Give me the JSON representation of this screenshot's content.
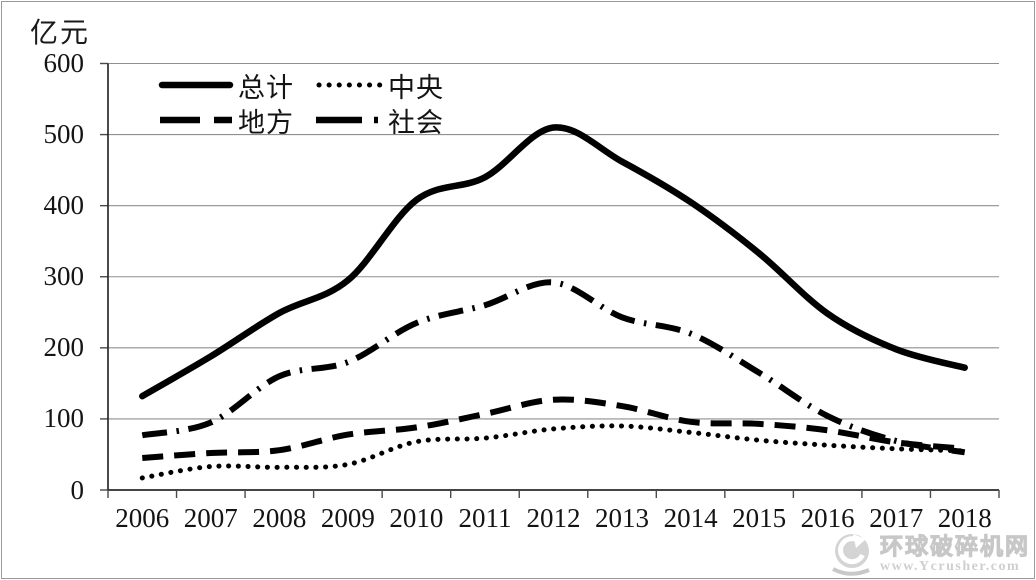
{
  "chart_data": {
    "type": "line",
    "title": "",
    "ylabel": "亿元",
    "xlabel": "",
    "categories": [
      "2006",
      "2007",
      "2008",
      "2009",
      "2010",
      "2011",
      "2012",
      "2013",
      "2014",
      "2015",
      "2016",
      "2017",
      "2018"
    ],
    "ylim": [
      0,
      600
    ],
    "yticks": [
      0,
      100,
      200,
      300,
      400,
      500,
      600
    ],
    "grid": "horizontal",
    "legend_position": "top-left-inside-2x2",
    "line_color": "#000000",
    "series": [
      {
        "name": "总计",
        "style": "solid",
        "values": [
          132,
          188,
          249,
          295,
          408,
          440,
          510,
          462,
          405,
          333,
          248,
          198,
          172
        ]
      },
      {
        "name": "中央",
        "style": "dotted",
        "values": [
          17,
          33,
          32,
          36,
          68,
          73,
          86,
          90,
          81,
          70,
          63,
          58,
          55
        ]
      },
      {
        "name": "地方",
        "style": "dashed",
        "values": [
          45,
          52,
          56,
          78,
          88,
          107,
          127,
          118,
          96,
          93,
          84,
          67,
          58
        ]
      },
      {
        "name": "社会",
        "style": "dashdot",
        "values": [
          77,
          95,
          160,
          180,
          235,
          260,
          292,
          243,
          220,
          165,
          104,
          69,
          53
        ]
      }
    ]
  },
  "watermark": {
    "site_name": "环球破碎机网",
    "site_url": "www.Ycrusher.com"
  },
  "colors": {
    "line": "#000000",
    "grid": "#8f8f8f",
    "axis": "#2a2a2a",
    "watermark_gray": "#a8a8a8"
  }
}
